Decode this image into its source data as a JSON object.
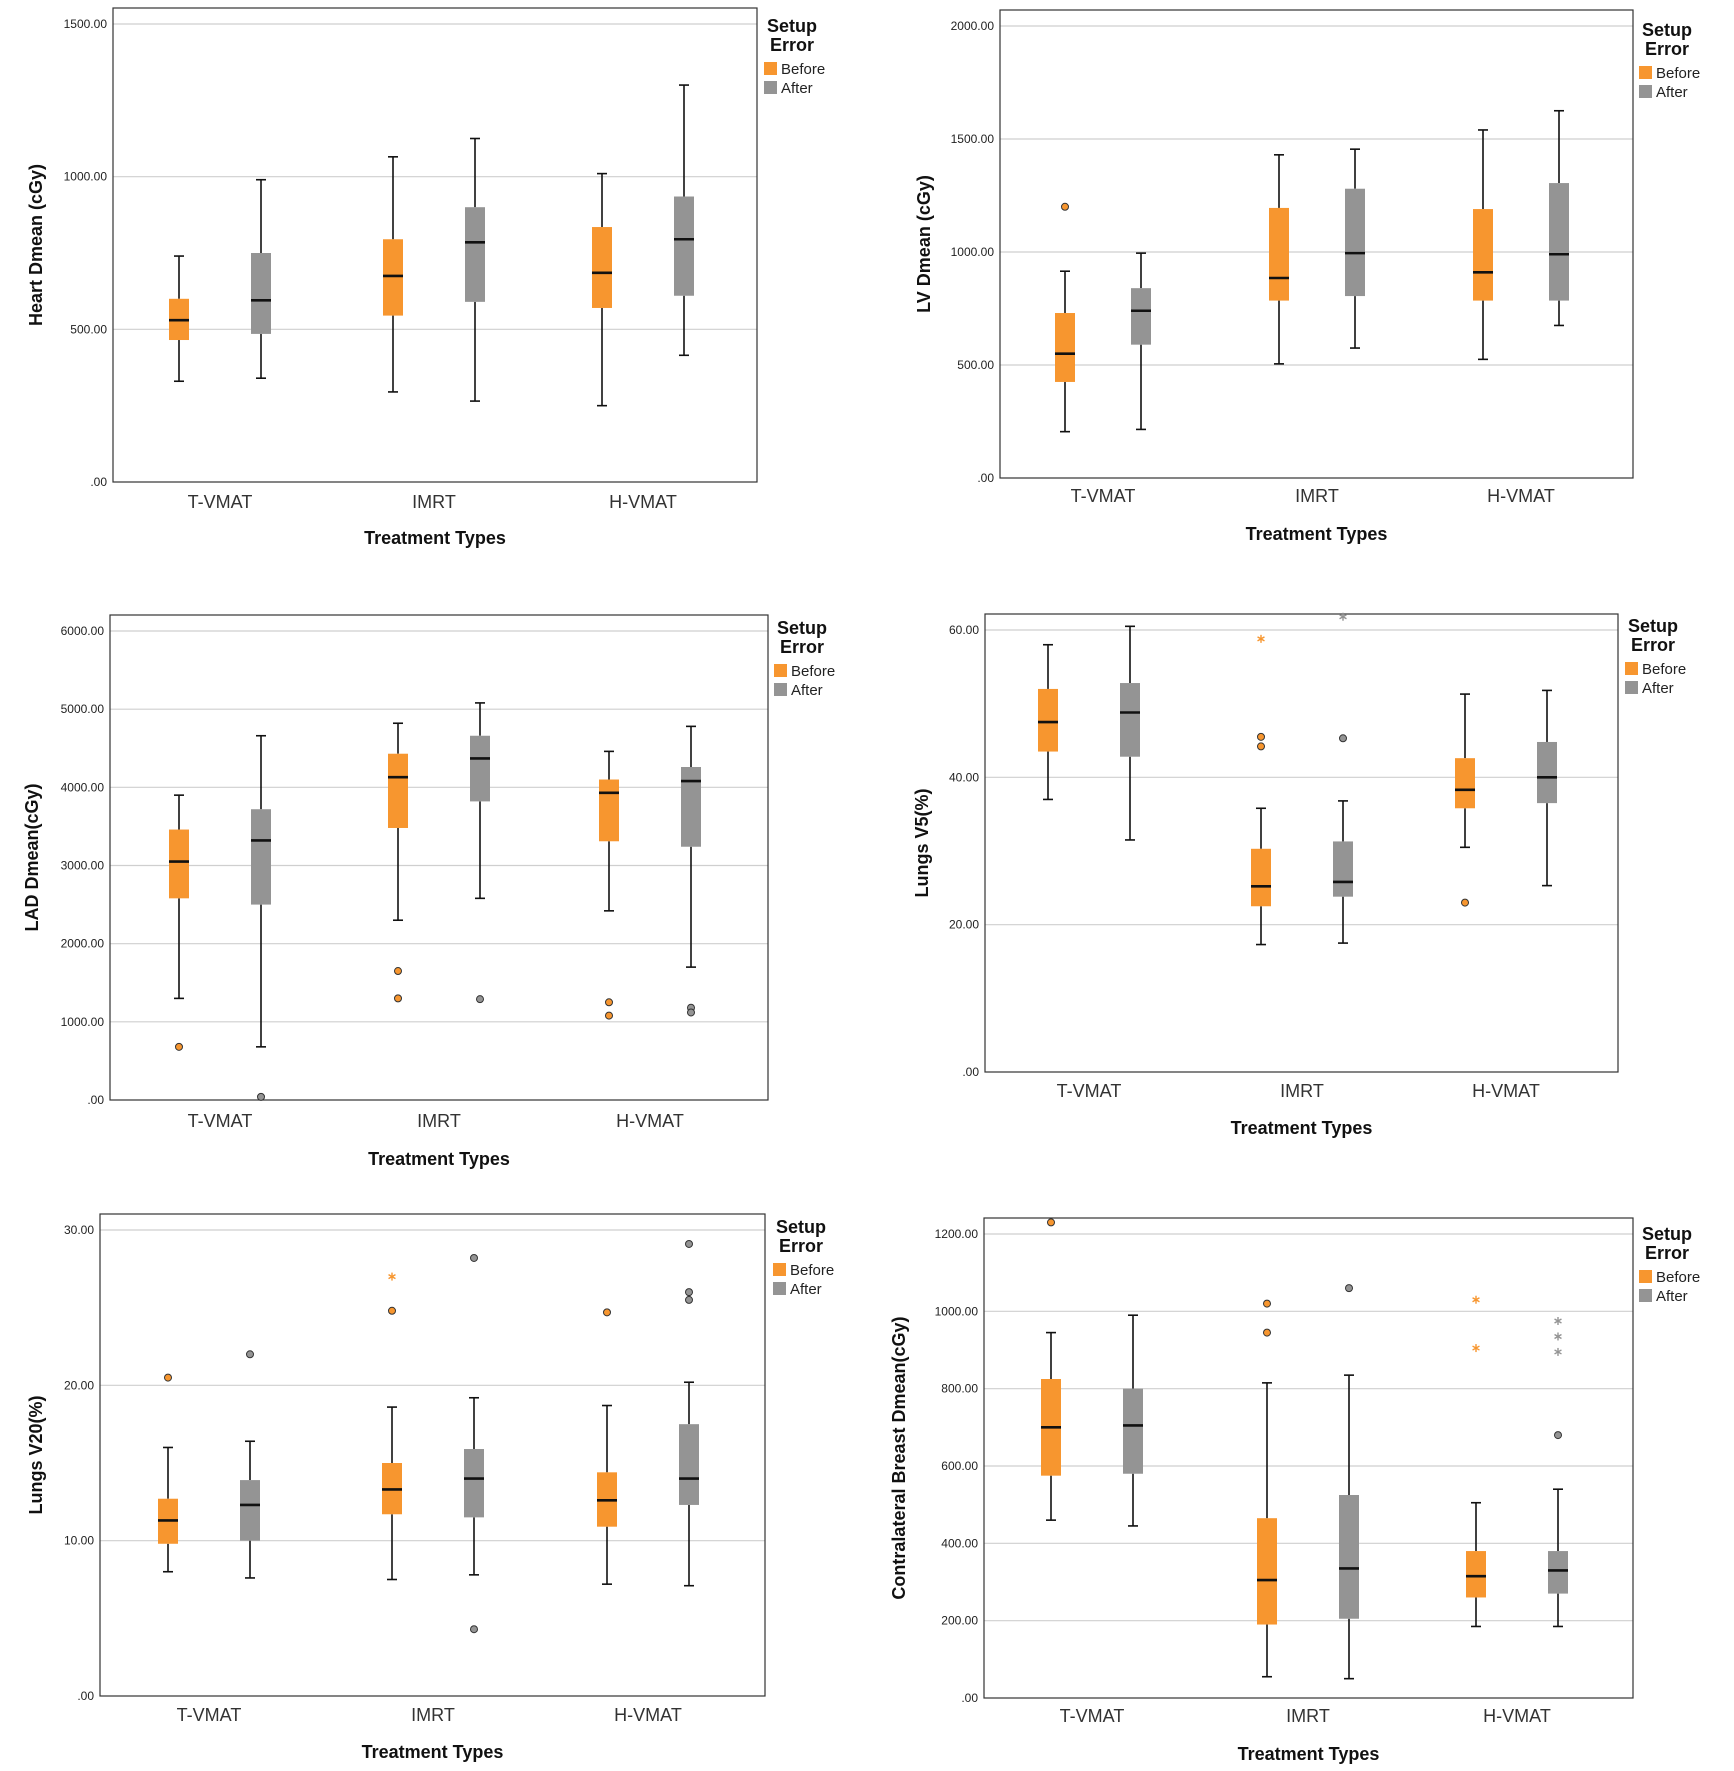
{
  "colors": {
    "before": "#f7962f",
    "after": "#949494",
    "grid": "#cfcfcf",
    "frame": "#333333"
  },
  "legend": {
    "title_line1": "Setup",
    "title_line2": "Error",
    "before": "Before",
    "after": "After"
  },
  "chart_data": [
    {
      "type": "box",
      "ylabel": "Heart Dmean (cGy)",
      "xlabel": "Treatment Types",
      "categories": [
        "T-VMAT",
        "IMRT",
        "H-VMAT"
      ],
      "ylim": [
        0,
        1500
      ],
      "yticks": [
        0,
        500,
        1000,
        1500
      ],
      "ytick_labels": [
        ".00",
        "500.00",
        "1000.00",
        "1500.00"
      ],
      "series": [
        {
          "name": "Before",
          "boxes": [
            {
              "whislo": 330,
              "q1": 465,
              "med": 530,
              "q3": 600,
              "whishi": 740,
              "outliers": [],
              "extremes": []
            },
            {
              "whislo": 295,
              "q1": 545,
              "med": 675,
              "q3": 795,
              "whishi": 1065,
              "outliers": [],
              "extremes": []
            },
            {
              "whislo": 250,
              "q1": 570,
              "med": 685,
              "q3": 835,
              "whishi": 1010,
              "outliers": [],
              "extremes": []
            }
          ]
        },
        {
          "name": "After",
          "boxes": [
            {
              "whislo": 340,
              "q1": 485,
              "med": 595,
              "q3": 750,
              "whishi": 990,
              "outliers": [],
              "extremes": []
            },
            {
              "whislo": 265,
              "q1": 590,
              "med": 785,
              "q3": 900,
              "whishi": 1125,
              "outliers": [],
              "extremes": []
            },
            {
              "whislo": 415,
              "q1": 610,
              "med": 795,
              "q3": 935,
              "whishi": 1300,
              "outliers": [],
              "extremes": []
            }
          ]
        }
      ]
    },
    {
      "type": "box",
      "ylabel": "LV Dmean (cGy)",
      "xlabel": "Treatment Types",
      "categories": [
        "T-VMAT",
        "IMRT",
        "H-VMAT"
      ],
      "ylim": [
        0,
        2000
      ],
      "yticks": [
        0,
        500,
        1000,
        1500,
        2000
      ],
      "ytick_labels": [
        ".00",
        "500.00",
        "1000.00",
        "1500.00",
        "2000.00"
      ],
      "series": [
        {
          "name": "Before",
          "boxes": [
            {
              "whislo": 205,
              "q1": 425,
              "med": 550,
              "q3": 730,
              "whishi": 915,
              "outliers": [
                1200
              ],
              "extremes": []
            },
            {
              "whislo": 505,
              "q1": 785,
              "med": 885,
              "q3": 1195,
              "whishi": 1430,
              "outliers": [],
              "extremes": []
            },
            {
              "whislo": 525,
              "q1": 785,
              "med": 910,
              "q3": 1190,
              "whishi": 1540,
              "outliers": [],
              "extremes": []
            }
          ]
        },
        {
          "name": "After",
          "boxes": [
            {
              "whislo": 215,
              "q1": 590,
              "med": 740,
              "q3": 840,
              "whishi": 995,
              "outliers": [],
              "extremes": []
            },
            {
              "whislo": 575,
              "q1": 805,
              "med": 995,
              "q3": 1280,
              "whishi": 1455,
              "outliers": [],
              "extremes": []
            },
            {
              "whislo": 675,
              "q1": 785,
              "med": 990,
              "q3": 1305,
              "whishi": 1625,
              "outliers": [],
              "extremes": []
            }
          ]
        }
      ]
    },
    {
      "type": "box",
      "ylabel": "LAD Dmean(cGy)",
      "xlabel": "Treatment Types",
      "categories": [
        "T-VMAT",
        "IMRT",
        "H-VMAT"
      ],
      "ylim": [
        0,
        6000
      ],
      "yticks": [
        0,
        1000,
        2000,
        3000,
        4000,
        5000,
        6000
      ],
      "ytick_labels": [
        ".00",
        "1000.00",
        "2000.00",
        "3000.00",
        "4000.00",
        "5000.00",
        "6000.00"
      ],
      "series": [
        {
          "name": "Before",
          "boxes": [
            {
              "whislo": 1300,
              "q1": 2580,
              "med": 3050,
              "q3": 3460,
              "whishi": 3900,
              "outliers": [
                680
              ],
              "extremes": []
            },
            {
              "whislo": 2300,
              "q1": 3480,
              "med": 4130,
              "q3": 4430,
              "whishi": 4820,
              "outliers": [
                1650,
                1300
              ],
              "extremes": []
            },
            {
              "whislo": 2420,
              "q1": 3310,
              "med": 3930,
              "q3": 4100,
              "whishi": 4460,
              "outliers": [
                1250,
                1080
              ],
              "extremes": []
            }
          ]
        },
        {
          "name": "After",
          "boxes": [
            {
              "whislo": 680,
              "q1": 2500,
              "med": 3320,
              "q3": 3720,
              "whishi": 4660,
              "outliers": [
                40
              ],
              "extremes": []
            },
            {
              "whislo": 2580,
              "q1": 3820,
              "med": 4370,
              "q3": 4660,
              "whishi": 5080,
              "outliers": [
                1290
              ],
              "extremes": []
            },
            {
              "whislo": 1700,
              "q1": 3240,
              "med": 4080,
              "q3": 4260,
              "whishi": 4780,
              "outliers": [
                1180,
                1120
              ],
              "extremes": []
            }
          ]
        }
      ]
    },
    {
      "type": "box",
      "ylabel": "Lungs V5(%)",
      "xlabel": "Treatment Types",
      "categories": [
        "T-VMAT",
        "IMRT",
        "H-VMAT"
      ],
      "ylim": [
        0,
        60
      ],
      "yticks": [
        0,
        20,
        40,
        60
      ],
      "ytick_labels": [
        ".00",
        "20.00",
        "40.00",
        "60.00"
      ],
      "series": [
        {
          "name": "Before",
          "boxes": [
            {
              "whislo": 37,
              "q1": 43.5,
              "med": 47.5,
              "q3": 52,
              "whishi": 58,
              "outliers": [],
              "extremes": []
            },
            {
              "whislo": 17.3,
              "q1": 22.5,
              "med": 25.2,
              "q3": 30.3,
              "whishi": 35.8,
              "outliers": [
                45.5,
                44.2
              ],
              "extremes": [
                58.8
              ]
            },
            {
              "whislo": 30.5,
              "q1": 35.8,
              "med": 38.3,
              "q3": 42.6,
              "whishi": 51.3,
              "outliers": [
                23
              ],
              "extremes": []
            }
          ]
        },
        {
          "name": "After",
          "boxes": [
            {
              "whislo": 31.5,
              "q1": 42.8,
              "med": 48.8,
              "q3": 52.8,
              "whishi": 60.5,
              "outliers": [],
              "extremes": []
            },
            {
              "whislo": 17.5,
              "q1": 23.8,
              "med": 25.8,
              "q3": 31.3,
              "whishi": 36.8,
              "outliers": [
                45.3
              ],
              "extremes": [
                61.8
              ]
            },
            {
              "whislo": 25.3,
              "q1": 36.5,
              "med": 40,
              "q3": 44.8,
              "whishi": 51.8,
              "outliers": [],
              "extremes": []
            }
          ]
        }
      ]
    },
    {
      "type": "box",
      "ylabel": "Lungs V20(%)",
      "xlabel": "Treatment Types",
      "categories": [
        "T-VMAT",
        "IMRT",
        "H-VMAT"
      ],
      "ylim": [
        0,
        30
      ],
      "yticks": [
        0,
        10,
        20,
        30
      ],
      "ytick_labels": [
        ".00",
        "10.00",
        "20.00",
        "30.00"
      ],
      "series": [
        {
          "name": "Before",
          "boxes": [
            {
              "whislo": 8,
              "q1": 9.8,
              "med": 11.3,
              "q3": 12.7,
              "whishi": 16,
              "outliers": [
                20.5
              ],
              "extremes": []
            },
            {
              "whislo": 7.5,
              "q1": 11.7,
              "med": 13.3,
              "q3": 15,
              "whishi": 18.6,
              "outliers": [
                24.8
              ],
              "extremes": [
                27
              ]
            },
            {
              "whislo": 7.2,
              "q1": 10.9,
              "med": 12.6,
              "q3": 14.4,
              "whishi": 18.7,
              "outliers": [
                24.7
              ],
              "extremes": []
            }
          ]
        },
        {
          "name": "After",
          "boxes": [
            {
              "whislo": 7.6,
              "q1": 10,
              "med": 12.3,
              "q3": 13.9,
              "whishi": 16.4,
              "outliers": [
                22
              ],
              "extremes": []
            },
            {
              "whislo": 7.8,
              "q1": 11.5,
              "med": 14,
              "q3": 15.9,
              "whishi": 19.2,
              "outliers": [
                28.2,
                4.3
              ],
              "extremes": []
            },
            {
              "whislo": 7.1,
              "q1": 12.3,
              "med": 14,
              "q3": 17.5,
              "whishi": 20.2,
              "outliers": [
                29.1,
                26,
                25.5
              ],
              "extremes": []
            }
          ]
        }
      ]
    },
    {
      "type": "box",
      "ylabel": "Contralateral Breast Dmean(cGy)",
      "xlabel": "Treatment Types",
      "categories": [
        "T-VMAT",
        "IMRT",
        "H-VMAT"
      ],
      "ylim": [
        0,
        1200
      ],
      "yticks": [
        0,
        200,
        400,
        600,
        800,
        1000,
        1200
      ],
      "ytick_labels": [
        ".00",
        "200.00",
        "400.00",
        "600.00",
        "800.00",
        "1000.00",
        "1200.00"
      ],
      "series": [
        {
          "name": "Before",
          "boxes": [
            {
              "whislo": 460,
              "q1": 575,
              "med": 700,
              "q3": 825,
              "whishi": 945,
              "outliers": [
                1230
              ],
              "extremes": []
            },
            {
              "whislo": 55,
              "q1": 190,
              "med": 305,
              "q3": 465,
              "whishi": 815,
              "outliers": [
                1020,
                945
              ],
              "extremes": []
            },
            {
              "whislo": 185,
              "q1": 260,
              "med": 315,
              "q3": 380,
              "whishi": 505,
              "outliers": [],
              "extremes": [
                1030,
                905
              ]
            }
          ]
        },
        {
          "name": "After",
          "boxes": [
            {
              "whislo": 445,
              "q1": 580,
              "med": 705,
              "q3": 800,
              "whishi": 990,
              "outliers": [],
              "extremes": []
            },
            {
              "whislo": 50,
              "q1": 205,
              "med": 335,
              "q3": 525,
              "whishi": 835,
              "outliers": [
                1060
              ],
              "extremes": []
            },
            {
              "whislo": 185,
              "q1": 270,
              "med": 330,
              "q3": 380,
              "whishi": 540,
              "outliers": [
                680
              ],
              "extremes": [
                975,
                935,
                895
              ]
            }
          ]
        }
      ]
    }
  ]
}
